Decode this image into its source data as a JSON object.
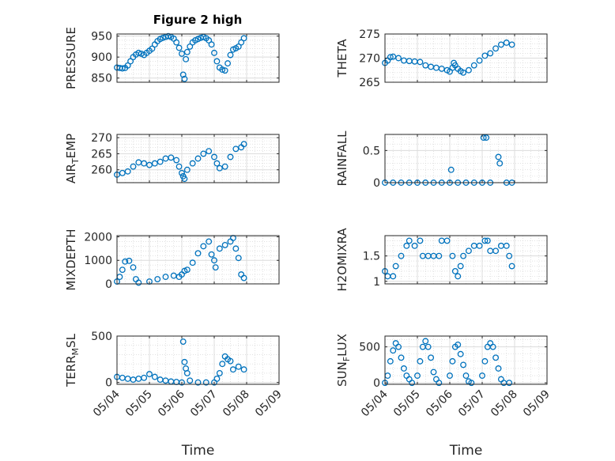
{
  "figure": {
    "title": "Figure 2 high"
  },
  "chart_data": [
    {
      "type": "scatter",
      "id": "pressure",
      "title": "Figure 2 high",
      "ylabel": "PRESSURE",
      "xlabel": "",
      "ylim": [
        840,
        955
      ],
      "yticks": [
        850,
        900,
        950
      ],
      "xlim": [
        "05/04",
        "05/09"
      ],
      "xticks": [],
      "grid": true,
      "color": "#0072BD",
      "points": [
        [
          "05/04 00:00",
          875
        ],
        [
          "05/04 02:00",
          874
        ],
        [
          "05/04 04:00",
          873
        ],
        [
          "05/04 06:00",
          874
        ],
        [
          "05/04 08:00",
          880
        ],
        [
          "05/04 10:00",
          890
        ],
        [
          "05/04 12:00",
          900
        ],
        [
          "05/04 14:00",
          906
        ],
        [
          "05/04 16:00",
          910
        ],
        [
          "05/04 18:00",
          908
        ],
        [
          "05/04 20:00",
          905
        ],
        [
          "05/04 22:00",
          910
        ],
        [
          "05/05 00:00",
          915
        ],
        [
          "05/05 02:00",
          920
        ],
        [
          "05/05 04:00",
          930
        ],
        [
          "05/05 06:00",
          938
        ],
        [
          "05/05 08:00",
          943
        ],
        [
          "05/05 10:00",
          946
        ],
        [
          "05/05 12:00",
          948
        ],
        [
          "05/05 14:00",
          950
        ],
        [
          "05/05 16:00",
          948
        ],
        [
          "05/05 18:00",
          944
        ],
        [
          "05/05 20:00",
          935
        ],
        [
          "05/05 22:00",
          922
        ],
        [
          "05/06 00:00",
          908
        ],
        [
          "05/06 01:00",
          858
        ],
        [
          "05/06 02:00",
          848
        ],
        [
          "05/06 03:00",
          895
        ],
        [
          "05/06 04:00",
          912
        ],
        [
          "05/06 06:00",
          925
        ],
        [
          "05/06 08:00",
          935
        ],
        [
          "05/06 10:00",
          940
        ],
        [
          "05/06 12:00",
          943
        ],
        [
          "05/06 14:00",
          946
        ],
        [
          "05/06 16:00",
          948
        ],
        [
          "05/06 18:00",
          945
        ],
        [
          "05/06 20:00",
          940
        ],
        [
          "05/06 22:00",
          930
        ],
        [
          "05/07 00:00",
          910
        ],
        [
          "05/07 02:00",
          890
        ],
        [
          "05/07 04:00",
          875
        ],
        [
          "05/07 06:00",
          870
        ],
        [
          "05/07 08:00",
          868
        ],
        [
          "05/07 10:00",
          885
        ],
        [
          "05/07 12:00",
          905
        ],
        [
          "05/07 14:00",
          918
        ],
        [
          "05/07 16:00",
          921
        ],
        [
          "05/07 18:00",
          925
        ],
        [
          "05/07 20:00",
          935
        ],
        [
          "05/07 22:00",
          945
        ]
      ]
    },
    {
      "type": "scatter",
      "id": "theta",
      "title": "",
      "ylabel": "THETA",
      "xlabel": "",
      "ylim": [
        265,
        275
      ],
      "yticks": [
        265,
        270,
        275
      ],
      "xlim": [
        "05/04",
        "05/09"
      ],
      "xticks": [],
      "grid": true,
      "color": "#0072BD",
      "points": [
        [
          "05/04 00:00",
          269
        ],
        [
          "05/04 02:00",
          269.5
        ],
        [
          "05/04 04:00",
          270.2
        ],
        [
          "05/04 06:00",
          270.3
        ],
        [
          "05/04 10:00",
          270
        ],
        [
          "05/04 14:00",
          269.5
        ],
        [
          "05/04 18:00",
          269.4
        ],
        [
          "05/04 22:00",
          269.3
        ],
        [
          "05/05 02:00",
          269.2
        ],
        [
          "05/05 06:00",
          268.5
        ],
        [
          "05/05 10:00",
          268.2
        ],
        [
          "05/05 14:00",
          268
        ],
        [
          "05/05 18:00",
          267.8
        ],
        [
          "05/05 22:00",
          267.5
        ],
        [
          "05/06 00:00",
          267.2
        ],
        [
          "05/06 02:00",
          268
        ],
        [
          "05/06 03:00",
          269
        ],
        [
          "05/06 04:00",
          268.5
        ],
        [
          "05/06 06:00",
          267.8
        ],
        [
          "05/06 08:00",
          267.3
        ],
        [
          "05/06 10:00",
          267
        ],
        [
          "05/06 14:00",
          267.5
        ],
        [
          "05/06 18:00",
          268.5
        ],
        [
          "05/06 22:00",
          269.5
        ],
        [
          "05/07 02:00",
          270.5
        ],
        [
          "05/07 06:00",
          271
        ],
        [
          "05/07 10:00",
          272
        ],
        [
          "05/07 14:00",
          272.8
        ],
        [
          "05/07 18:00",
          273.2
        ],
        [
          "05/07 22:00",
          272.8
        ]
      ]
    },
    {
      "type": "scatter",
      "id": "airtemp",
      "title": "",
      "ylabel": "AIR_TEMP",
      "xlabel": "",
      "ylim": [
        256,
        271
      ],
      "yticks": [
        260,
        265,
        270
      ],
      "xlim": [
        "05/04",
        "05/09"
      ],
      "xticks": [],
      "grid": true,
      "color": "#0072BD",
      "points": [
        [
          "05/04 00:00",
          258.5
        ],
        [
          "05/04 04:00",
          259
        ],
        [
          "05/04 08:00",
          259.5
        ],
        [
          "05/04 12:00",
          261
        ],
        [
          "05/04 16:00",
          262.3
        ],
        [
          "05/04 20:00",
          262
        ],
        [
          "05/05 00:00",
          261.5
        ],
        [
          "05/05 04:00",
          262
        ],
        [
          "05/05 08:00",
          262.5
        ],
        [
          "05/05 12:00",
          263.5
        ],
        [
          "05/05 16:00",
          263.8
        ],
        [
          "05/05 20:00",
          263
        ],
        [
          "05/05 22:00",
          261
        ],
        [
          "05/06 00:00",
          259
        ],
        [
          "05/06 01:00",
          258
        ],
        [
          "05/06 02:00",
          257.2
        ],
        [
          "05/06 04:00",
          260
        ],
        [
          "05/06 08:00",
          262
        ],
        [
          "05/06 12:00",
          263.5
        ],
        [
          "05/06 16:00",
          265
        ],
        [
          "05/06 20:00",
          265.8
        ],
        [
          "05/07 00:00",
          264
        ],
        [
          "05/07 02:00",
          262
        ],
        [
          "05/07 04:00",
          260.5
        ],
        [
          "05/07 08:00",
          261
        ],
        [
          "05/07 12:00",
          264
        ],
        [
          "05/07 16:00",
          266.5
        ],
        [
          "05/07 20:00",
          267
        ],
        [
          "05/07 22:00",
          268
        ]
      ]
    },
    {
      "type": "scatter",
      "id": "rainfall",
      "title": "",
      "ylabel": "RAINFALL",
      "xlabel": "",
      "ylim": [
        0,
        0.75
      ],
      "yticks": [
        0,
        0.5
      ],
      "xlim": [
        "05/04",
        "05/09"
      ],
      "xticks": [],
      "grid": true,
      "color": "#0072BD",
      "points": [
        [
          "05/04 00:00",
          0
        ],
        [
          "05/04 06:00",
          0
        ],
        [
          "05/04 12:00",
          0
        ],
        [
          "05/04 18:00",
          0
        ],
        [
          "05/05 00:00",
          0
        ],
        [
          "05/05 06:00",
          0
        ],
        [
          "05/05 12:00",
          0
        ],
        [
          "05/05 18:00",
          0
        ],
        [
          "05/06 00:00",
          0
        ],
        [
          "05/06 01:00",
          0.2
        ],
        [
          "05/06 06:00",
          0
        ],
        [
          "05/06 12:00",
          0
        ],
        [
          "05/06 18:00",
          0
        ],
        [
          "05/07 00:00",
          0
        ],
        [
          "05/07 01:00",
          0.7
        ],
        [
          "05/07 03:00",
          0.7
        ],
        [
          "05/07 06:00",
          0
        ],
        [
          "05/07 12:00",
          0.4
        ],
        [
          "05/07 13:00",
          0.3
        ],
        [
          "05/07 18:00",
          0
        ],
        [
          "05/07 22:00",
          0
        ]
      ]
    },
    {
      "type": "scatter",
      "id": "mixdepth",
      "title": "",
      "ylabel": "MIXDEPTH",
      "xlabel": "",
      "ylim": [
        0,
        2050
      ],
      "yticks": [
        0,
        1000,
        2000
      ],
      "xlim": [
        "05/04",
        "05/09"
      ],
      "xticks": [],
      "grid": true,
      "color": "#0072BD",
      "points": [
        [
          "05/04 00:00",
          100
        ],
        [
          "05/04 02:00",
          300
        ],
        [
          "05/04 04:00",
          600
        ],
        [
          "05/04 06:00",
          950
        ],
        [
          "05/04 09:00",
          980
        ],
        [
          "05/04 12:00",
          700
        ],
        [
          "05/04 14:00",
          200
        ],
        [
          "05/04 16:00",
          50
        ],
        [
          "05/05 00:00",
          100
        ],
        [
          "05/05 06:00",
          200
        ],
        [
          "05/05 12:00",
          300
        ],
        [
          "05/05 18:00",
          350
        ],
        [
          "05/05 22:00",
          300
        ],
        [
          "05/06 00:00",
          400
        ],
        [
          "05/06 02:00",
          550
        ],
        [
          "05/06 04:00",
          600
        ],
        [
          "05/06 08:00",
          900
        ],
        [
          "05/06 12:00",
          1300
        ],
        [
          "05/06 16:00",
          1600
        ],
        [
          "05/06 20:00",
          1800
        ],
        [
          "05/06 22:00",
          1250
        ],
        [
          "05/07 00:00",
          1000
        ],
        [
          "05/07 01:00",
          700
        ],
        [
          "05/07 04:00",
          1500
        ],
        [
          "05/07 08:00",
          1650
        ],
        [
          "05/07 12:00",
          1800
        ],
        [
          "05/07 14:00",
          1950
        ],
        [
          "05/07 16:00",
          1500
        ],
        [
          "05/07 18:00",
          1100
        ],
        [
          "05/07 20:00",
          400
        ],
        [
          "05/07 22:00",
          250
        ]
      ]
    },
    {
      "type": "scatter",
      "id": "h2omixra",
      "title": "",
      "ylabel": "H2OMIXRA",
      "xlabel": "",
      "ylim": [
        0.95,
        1.9
      ],
      "yticks": [
        1,
        1.5
      ],
      "xlim": [
        "05/04",
        "05/09"
      ],
      "xticks": [],
      "grid": true,
      "color": "#0072BD",
      "points": [
        [
          "05/04 00:00",
          1.2
        ],
        [
          "05/04 02:00",
          1.1
        ],
        [
          "05/04 06:00",
          1.1
        ],
        [
          "05/04 08:00",
          1.3
        ],
        [
          "05/04 12:00",
          1.5
        ],
        [
          "05/04 16:00",
          1.7
        ],
        [
          "05/04 18:00",
          1.8
        ],
        [
          "05/04 22:00",
          1.7
        ],
        [
          "05/05 02:00",
          1.8
        ],
        [
          "05/05 04:00",
          1.5
        ],
        [
          "05/05 08:00",
          1.5
        ],
        [
          "05/05 12:00",
          1.5
        ],
        [
          "05/05 16:00",
          1.5
        ],
        [
          "05/05 18:00",
          1.8
        ],
        [
          "05/05 22:00",
          1.8
        ],
        [
          "05/06 02:00",
          1.5
        ],
        [
          "05/06 04:00",
          1.2
        ],
        [
          "05/06 06:00",
          1.1
        ],
        [
          "05/06 08:00",
          1.3
        ],
        [
          "05/06 10:00",
          1.5
        ],
        [
          "05/06 14:00",
          1.6
        ],
        [
          "05/06 18:00",
          1.7
        ],
        [
          "05/06 22:00",
          1.7
        ],
        [
          "05/07 02:00",
          1.8
        ],
        [
          "05/07 04:00",
          1.8
        ],
        [
          "05/07 06:00",
          1.6
        ],
        [
          "05/07 10:00",
          1.6
        ],
        [
          "05/07 14:00",
          1.7
        ],
        [
          "05/07 18:00",
          1.7
        ],
        [
          "05/07 20:00",
          1.5
        ],
        [
          "05/07 22:00",
          1.3
        ]
      ]
    },
    {
      "type": "scatter",
      "id": "terrmsl",
      "title": "",
      "ylabel": "TERR_MSL",
      "xlabel": "Time",
      "ylim": [
        -20,
        500
      ],
      "yticks": [
        0,
        500
      ],
      "xlim": [
        "05/04",
        "05/09"
      ],
      "xticks": [
        "05/04",
        "05/05",
        "05/06",
        "05/07",
        "05/08",
        "05/09"
      ],
      "grid": true,
      "color": "#0072BD",
      "points": [
        [
          "05/04 00:00",
          60
        ],
        [
          "05/04 04:00",
          50
        ],
        [
          "05/04 08:00",
          40
        ],
        [
          "05/04 12:00",
          30
        ],
        [
          "05/04 16:00",
          40
        ],
        [
          "05/04 20:00",
          50
        ],
        [
          "05/05 00:00",
          90
        ],
        [
          "05/05 04:00",
          60
        ],
        [
          "05/05 08:00",
          30
        ],
        [
          "05/05 12:00",
          20
        ],
        [
          "05/05 16:00",
          10
        ],
        [
          "05/05 20:00",
          5
        ],
        [
          "05/06 00:00",
          0
        ],
        [
          "05/06 01:00",
          440
        ],
        [
          "05/06 02:00",
          220
        ],
        [
          "05/06 03:00",
          150
        ],
        [
          "05/06 04:00",
          100
        ],
        [
          "05/06 06:00",
          20
        ],
        [
          "05/06 12:00",
          0
        ],
        [
          "05/06 18:00",
          0
        ],
        [
          "05/07 00:00",
          0
        ],
        [
          "05/07 02:00",
          40
        ],
        [
          "05/07 04:00",
          100
        ],
        [
          "05/07 06:00",
          200
        ],
        [
          "05/07 08:00",
          280
        ],
        [
          "05/07 10:00",
          250
        ],
        [
          "05/07 12:00",
          230
        ],
        [
          "05/07 14:00",
          140
        ],
        [
          "05/07 18:00",
          170
        ],
        [
          "05/07 22:00",
          140
        ]
      ]
    },
    {
      "type": "scatter",
      "id": "sunflux",
      "title": "",
      "ylabel": "SUN_FLUX",
      "xlabel": "Time",
      "ylim": [
        -20,
        650
      ],
      "yticks": [
        0,
        500
      ],
      "xlim": [
        "05/04",
        "05/09"
      ],
      "xticks": [
        "05/04",
        "05/05",
        "05/06",
        "05/07",
        "05/08",
        "05/09"
      ],
      "grid": true,
      "color": "#0072BD",
      "points": [
        [
          "05/04 00:00",
          0
        ],
        [
          "05/04 02:00",
          100
        ],
        [
          "05/04 04:00",
          300
        ],
        [
          "05/04 06:00",
          450
        ],
        [
          "05/04 08:00",
          550
        ],
        [
          "05/04 10:00",
          500
        ],
        [
          "05/04 12:00",
          350
        ],
        [
          "05/04 14:00",
          200
        ],
        [
          "05/04 16:00",
          100
        ],
        [
          "05/04 18:00",
          50
        ],
        [
          "05/04 20:00",
          0
        ],
        [
          "05/05 00:00",
          100
        ],
        [
          "05/05 02:00",
          300
        ],
        [
          "05/05 04:00",
          500
        ],
        [
          "05/05 06:00",
          580
        ],
        [
          "05/05 08:00",
          500
        ],
        [
          "05/05 10:00",
          350
        ],
        [
          "05/05 12:00",
          150
        ],
        [
          "05/05 14:00",
          50
        ],
        [
          "05/05 16:00",
          0
        ],
        [
          "05/06 00:00",
          100
        ],
        [
          "05/06 02:00",
          300
        ],
        [
          "05/06 04:00",
          500
        ],
        [
          "05/06 06:00",
          530
        ],
        [
          "05/06 08:00",
          400
        ],
        [
          "05/06 10:00",
          250
        ],
        [
          "05/06 12:00",
          100
        ],
        [
          "05/06 14:00",
          20
        ],
        [
          "05/06 16:00",
          0
        ],
        [
          "05/07 00:00",
          100
        ],
        [
          "05/07 02:00",
          300
        ],
        [
          "05/07 04:00",
          500
        ],
        [
          "05/07 06:00",
          550
        ],
        [
          "05/07 08:00",
          500
        ],
        [
          "05/07 10:00",
          350
        ],
        [
          "05/07 12:00",
          200
        ],
        [
          "05/07 14:00",
          50
        ],
        [
          "05/07 16:00",
          0
        ],
        [
          "05/07 20:00",
          0
        ]
      ]
    }
  ]
}
